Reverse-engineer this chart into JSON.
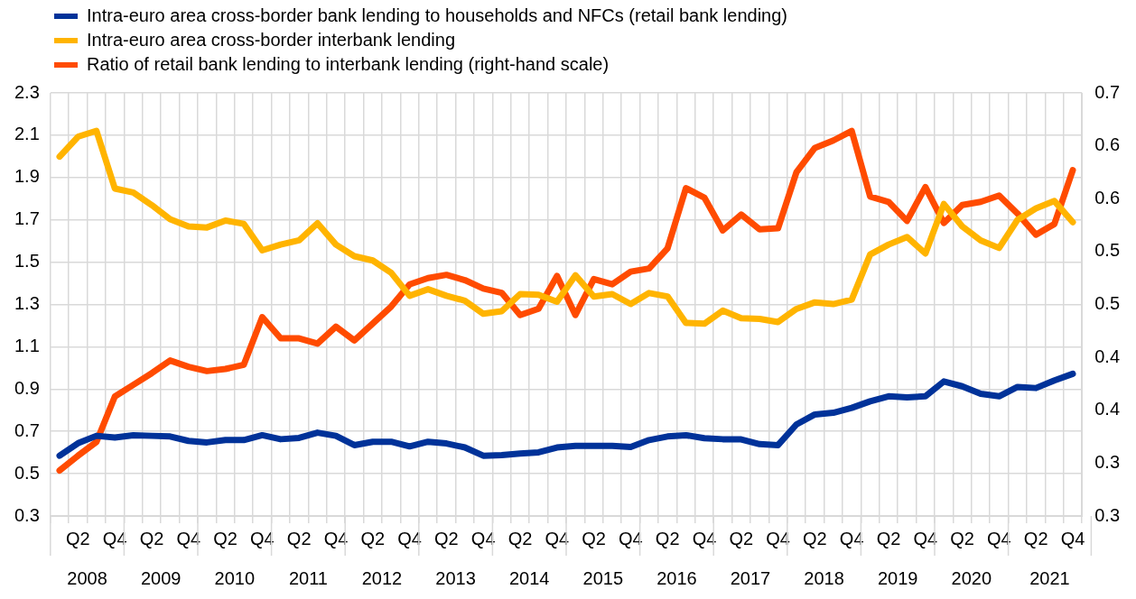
{
  "chart_data": {
    "type": "line",
    "categories": [
      null,
      "Q2",
      null,
      "Q4",
      null,
      "Q2",
      null,
      "Q4",
      null,
      "Q2",
      null,
      "Q4",
      null,
      "Q2",
      null,
      "Q4",
      null,
      "Q2",
      null,
      "Q4",
      null,
      "Q2",
      null,
      "Q4",
      null,
      "Q2",
      null,
      "Q4",
      null,
      "Q2",
      null,
      "Q4",
      null,
      "Q2",
      null,
      "Q4",
      null,
      "Q2",
      null,
      "Q4",
      null,
      "Q2",
      null,
      "Q4",
      null,
      "Q2",
      null,
      "Q4",
      null,
      "Q2",
      null,
      "Q4",
      null,
      "Q2",
      null,
      "Q4"
    ],
    "series": [
      {
        "name": "Intra-euro area cross-border bank lending to households and NFCs (retail bank lending)",
        "color": "#003299",
        "values": [
          0.585,
          0.644,
          0.679,
          0.671,
          0.682,
          0.679,
          0.676,
          0.655,
          0.648,
          0.659,
          0.659,
          0.682,
          0.663,
          0.669,
          0.694,
          0.679,
          0.635,
          0.651,
          0.651,
          0.629,
          0.651,
          0.643,
          0.624,
          0.585,
          0.588,
          0.595,
          0.601,
          0.624,
          0.632,
          0.632,
          0.632,
          0.626,
          0.659,
          0.676,
          0.682,
          0.668,
          0.663,
          0.662,
          0.64,
          0.635,
          0.733,
          0.78,
          0.788,
          0.811,
          0.842,
          0.866,
          0.861,
          0.866,
          0.936,
          0.913,
          0.878,
          0.866,
          0.91,
          0.905,
          0.941,
          0.972
        ]
      },
      {
        "name": "Intra-euro area cross-border interbank lending",
        "color": "#ffb400",
        "values": [
          1.999,
          2.093,
          2.121,
          1.848,
          1.829,
          1.77,
          1.703,
          1.669,
          1.664,
          1.697,
          1.681,
          1.556,
          1.583,
          1.603,
          1.684,
          1.583,
          1.528,
          1.508,
          1.45,
          1.341,
          1.372,
          1.341,
          1.318,
          1.256,
          1.268,
          1.349,
          1.346,
          1.313,
          1.438,
          1.337,
          1.349,
          1.302,
          1.354,
          1.338,
          1.213,
          1.209,
          1.271,
          1.235,
          1.232,
          1.217,
          1.279,
          1.31,
          1.302,
          1.323,
          1.536,
          1.583,
          1.619,
          1.541,
          1.775,
          1.669,
          1.603,
          1.567,
          1.7,
          1.754,
          1.789,
          1.689
        ]
      },
      {
        "name": "Ratio of retail bank lending to interbank lending (right-hand scale)",
        "color": "#ff4b00",
        "axis": "y2",
        "values": [
          0.343,
          0.357,
          0.37,
          0.413,
          0.424,
          0.435,
          0.447,
          0.441,
          0.437,
          0.439,
          0.443,
          0.488,
          0.468,
          0.468,
          0.463,
          0.479,
          0.466,
          0.482,
          0.498,
          0.519,
          0.525,
          0.528,
          0.523,
          0.515,
          0.511,
          0.49,
          0.496,
          0.527,
          0.49,
          0.524,
          0.519,
          0.531,
          0.534,
          0.553,
          0.61,
          0.601,
          0.57,
          0.585,
          0.571,
          0.572,
          0.625,
          0.648,
          0.655,
          0.664,
          0.602,
          0.597,
          0.579,
          0.611,
          0.577,
          0.594,
          0.597,
          0.603,
          0.586,
          0.566,
          0.576,
          0.627
        ]
      }
    ],
    "ylim": [
      0.3,
      2.3
    ],
    "yticks": [
      0.3,
      0.5,
      0.7,
      0.9,
      1.1,
      1.3,
      1.5,
      1.7,
      1.9,
      2.1,
      2.3
    ],
    "y2lim": [
      0.3,
      0.7
    ],
    "y2ticks": [
      {
        "value": 0.3,
        "label": "0.3"
      },
      {
        "value": 0.35,
        "label": "0.3"
      },
      {
        "value": 0.4,
        "label": "0.4"
      },
      {
        "value": 0.45,
        "label": "0.4"
      },
      {
        "value": 0.5,
        "label": "0.5"
      },
      {
        "value": 0.55,
        "label": "0.5"
      },
      {
        "value": 0.6,
        "label": "0.6"
      },
      {
        "value": 0.65,
        "label": "0.6"
      },
      {
        "value": 0.7,
        "label": "0.7"
      }
    ],
    "annotations": [
      "2008",
      "2009",
      "2010",
      "2011",
      "2012",
      "2013",
      "2014",
      "2015",
      "2016",
      "2017",
      "2018",
      "2019",
      "2020",
      "2021"
    ],
    "grid": true,
    "legend": "top left",
    "marker": "none",
    "line_style": "solid"
  }
}
